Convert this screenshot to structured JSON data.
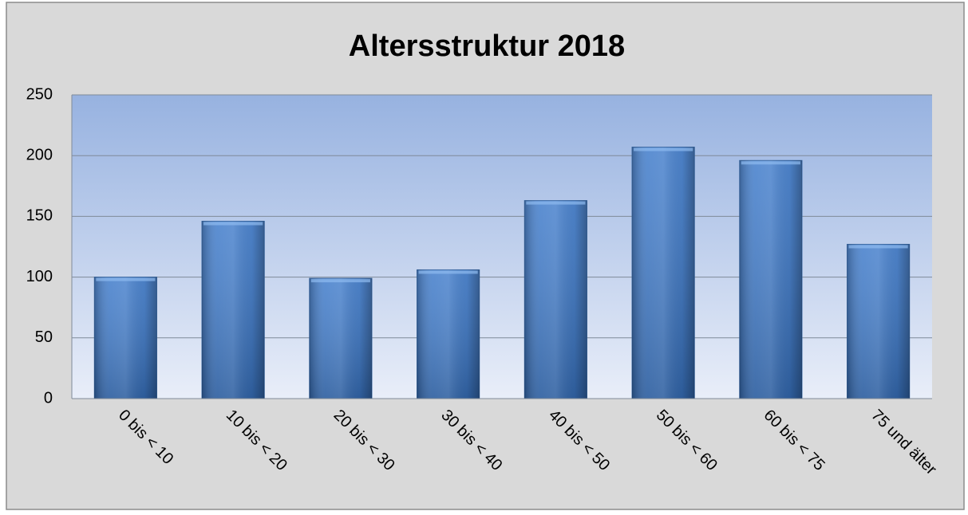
{
  "chart_data": {
    "type": "bar",
    "title": "Altersstruktur 2018",
    "categories": [
      "0 bis < 10",
      "10 bis < 20",
      "20 bis < 30",
      "30 bis < 40",
      "40 bis < 50",
      "50 bis < 60",
      "60 bis < 75",
      "75 und älter"
    ],
    "values": [
      100,
      146,
      99,
      106,
      163,
      207,
      196,
      127
    ],
    "color": "#3b78c9",
    "ylim": [
      0,
      250
    ],
    "yticks": [
      0,
      50,
      100,
      150,
      200,
      250
    ],
    "grid": true
  }
}
